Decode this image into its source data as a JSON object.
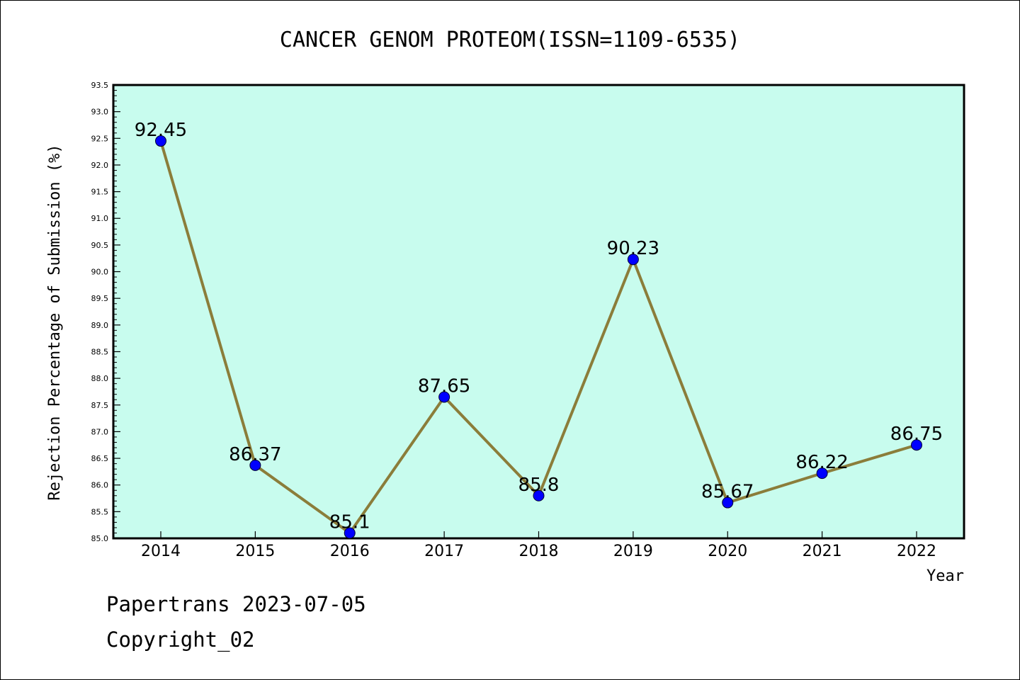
{
  "footer": {
    "line1": "Papertrans 2023-07-05",
    "line2": "Copyright_02"
  },
  "colors": {
    "plot_background": "#c8fcee",
    "line": "#8b7d3a",
    "marker": "#0000ff"
  },
  "chart_data": {
    "type": "line",
    "title": "CANCER GENOM PROTEOM(ISSN=1109-6535)",
    "xlabel": "Year",
    "ylabel": "Rejection Percentage of Submission (%)",
    "categories": [
      "2014",
      "2015",
      "2016",
      "2017",
      "2018",
      "2019",
      "2020",
      "2021",
      "2022"
    ],
    "series": [
      {
        "values": [
          92.45,
          86.37,
          85.1,
          87.65,
          85.8,
          90.23,
          85.67,
          86.22,
          86.75
        ],
        "labels": [
          "92.45",
          "86.37",
          "85.1",
          "87.65",
          "85.8",
          "90.23",
          "85.67",
          "86.22",
          "86.75"
        ]
      }
    ],
    "ylim": [
      85.0,
      93.5
    ],
    "yticks": [
      "85.0",
      "85.5",
      "86.0",
      "86.5",
      "87.0",
      "87.5",
      "88.0",
      "88.5",
      "89.0",
      "89.5",
      "90.0",
      "90.5",
      "91.0",
      "91.5",
      "92.0",
      "92.5",
      "93.0",
      "93.5"
    ],
    "y_minor_per_major": 5,
    "grid": false,
    "legend": "none"
  }
}
